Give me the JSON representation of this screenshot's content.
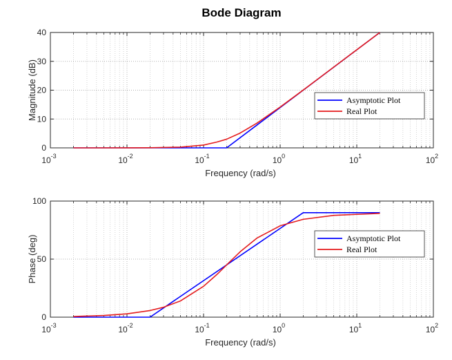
{
  "title": "Bode Diagram",
  "colors": {
    "asymptotic": "#0000ff",
    "real": "#e41a1c",
    "grid": "#c8c8c8",
    "axes": "#262626"
  },
  "chart_data": [
    {
      "type": "line",
      "title": "Bode Diagram",
      "xlabel": "Frequency (rad/s)",
      "ylabel": "Magnitude (dB)",
      "xscale": "log",
      "xlim": [
        0.001,
        100
      ],
      "ylim": [
        0,
        40
      ],
      "xticks": [
        {
          "base": "10",
          "exp": "-3"
        },
        {
          "base": "10",
          "exp": "-2"
        },
        {
          "base": "10",
          "exp": "-1"
        },
        {
          "base": "10",
          "exp": "0"
        },
        {
          "base": "10",
          "exp": "1"
        },
        {
          "base": "10",
          "exp": "2"
        }
      ],
      "yticks": [
        "0",
        "10",
        "20",
        "30",
        "40"
      ],
      "grid": true,
      "legend_position": "right",
      "series": [
        {
          "name": "Asymptotic Plot",
          "color": "#0000ff",
          "x": [
            0.002,
            0.2,
            20
          ],
          "y": [
            0,
            0,
            40
          ]
        },
        {
          "name": "Real Plot",
          "color": "#e41a1c",
          "x": [
            0.002,
            0.01,
            0.02,
            0.05,
            0.1,
            0.15,
            0.2,
            0.3,
            0.5,
            1,
            2,
            5,
            10,
            20
          ],
          "y": [
            0,
            0.01,
            0.04,
            0.26,
            0.97,
            2.04,
            3.01,
            5.12,
            8.6,
            14.15,
            20.04,
            28.0,
            34.0,
            40.0
          ]
        }
      ]
    },
    {
      "type": "line",
      "xlabel": "Frequency (rad/s)",
      "ylabel": "Phase (deg)",
      "xscale": "log",
      "xlim": [
        0.001,
        100
      ],
      "ylim": [
        0,
        100
      ],
      "xticks": [
        {
          "base": "10",
          "exp": "-3"
        },
        {
          "base": "10",
          "exp": "-2"
        },
        {
          "base": "10",
          "exp": "-1"
        },
        {
          "base": "10",
          "exp": "0"
        },
        {
          "base": "10",
          "exp": "1"
        },
        {
          "base": "10",
          "exp": "2"
        }
      ],
      "yticks": [
        "0",
        "50",
        "100"
      ],
      "grid": true,
      "legend_position": "right",
      "series": [
        {
          "name": "Asymptotic Plot",
          "color": "#0000ff",
          "x": [
            0.002,
            0.02,
            2,
            20
          ],
          "y": [
            0,
            0,
            90,
            90
          ]
        },
        {
          "name": "Real Plot",
          "color": "#e41a1c",
          "x": [
            0.002,
            0.005,
            0.01,
            0.02,
            0.03,
            0.05,
            0.1,
            0.15,
            0.2,
            0.3,
            0.5,
            1,
            2,
            5,
            20
          ],
          "y": [
            0.57,
            1.43,
            2.86,
            5.71,
            8.53,
            14.0,
            26.6,
            36.9,
            45.0,
            56.3,
            68.2,
            78.7,
            84.3,
            87.7,
            89.4
          ]
        }
      ]
    }
  ]
}
